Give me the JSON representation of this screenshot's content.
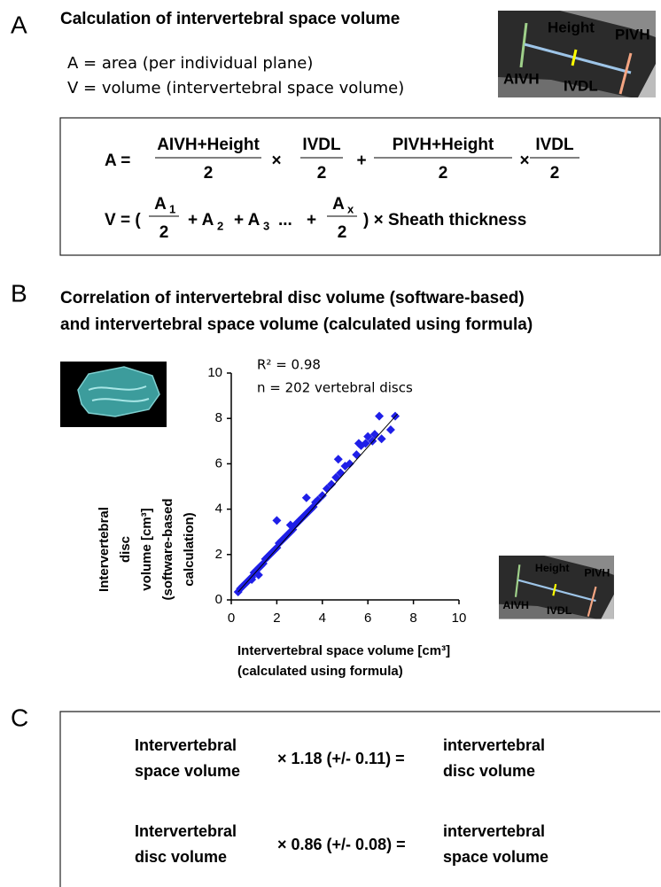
{
  "panel_a": {
    "letter": "A",
    "title": "Calculation of intervertebral space volume",
    "definitions": [
      "A = area (per individual plane)",
      "V = volume (intervertebral space volume)"
    ],
    "image_labels": {
      "height": "Height",
      "pivh": "PIVH",
      "aivh": "AIVH",
      "ivdl": "IVDL"
    },
    "formula_a": {
      "lhs": "A =",
      "fractions": [
        {
          "num": "AIVH+Height",
          "den": "2"
        },
        {
          "num": "IVDL",
          "den": "2"
        },
        {
          "num": "PIVH+Height",
          "den": "2"
        },
        {
          "num": "IVDL",
          "den": "2"
        }
      ],
      "operators": [
        "×",
        "+",
        "×"
      ]
    },
    "formula_v": {
      "lhs": "V = (",
      "fractions": [
        {
          "num": "A",
          "sub": "1",
          "den": "2"
        },
        {
          "num": "A",
          "sub": "x",
          "den": "2"
        }
      ],
      "terms": [
        {
          "text": "+ A",
          "sub": "2"
        },
        {
          "text": "+ A",
          "sub": "3"
        }
      ],
      "ellipsis": "...",
      "plus": "+",
      "tail": ") × Sheath thickness"
    }
  },
  "panel_b": {
    "letter": "B",
    "title": [
      "Correlation of intervertebral disc volume (software-based)",
      "and intervertebral space volume (calculated using formula)"
    ],
    "image_labels": {
      "height": "Height",
      "pivh": "PIVH",
      "aivh": "AIVH",
      "ivdl": "IVDL"
    }
  },
  "chart_data": {
    "type": "scatter",
    "annotations": [
      "R² = 0.98",
      "n = 202 vertebral discs"
    ],
    "x_label": [
      "Intervertebral space volume [cm³]",
      "(calculated using formula)"
    ],
    "y_label": [
      "Intervertebral",
      "disc",
      "volume [cm³]",
      "(software-based",
      "calculation)"
    ],
    "xlim": [
      0,
      10
    ],
    "ylim": [
      0,
      10
    ],
    "xticks": [
      0,
      2,
      4,
      6,
      8,
      10
    ],
    "yticks": [
      0,
      2,
      4,
      6,
      8,
      10
    ],
    "color": "#1f1fe8",
    "x": [
      0.3,
      0.4,
      0.5,
      0.6,
      0.7,
      0.8,
      0.9,
      1.0,
      1.1,
      1.2,
      1.3,
      1.4,
      1.5,
      1.6,
      1.7,
      1.8,
      1.9,
      2.0,
      2.1,
      2.2,
      2.3,
      2.4,
      2.5,
      2.6,
      2.7,
      2.8,
      2.9,
      3.0,
      3.1,
      3.2,
      3.3,
      3.4,
      3.5,
      3.6,
      3.7,
      3.8,
      4.0,
      4.2,
      4.4,
      4.6,
      4.8,
      5.0,
      5.2,
      5.5,
      5.7,
      5.9,
      6.0,
      6.3,
      6.5,
      6.6,
      7.0,
      7.2,
      2.0,
      2.6,
      4.7,
      3.3,
      1.2,
      0.9,
      5.6,
      6.2
    ],
    "values": [
      0.35,
      0.5,
      0.6,
      0.7,
      0.8,
      0.9,
      1.0,
      1.2,
      1.3,
      1.4,
      1.5,
      1.6,
      1.8,
      1.9,
      2.0,
      2.1,
      2.2,
      2.3,
      2.5,
      2.6,
      2.7,
      2.8,
      2.9,
      3.0,
      3.1,
      3.3,
      3.4,
      3.5,
      3.6,
      3.7,
      3.8,
      3.9,
      4.0,
      4.1,
      4.3,
      4.4,
      4.6,
      4.9,
      5.1,
      5.4,
      5.6,
      5.9,
      6.0,
      6.4,
      6.8,
      6.9,
      7.2,
      7.3,
      8.1,
      7.1,
      7.5,
      8.1,
      3.5,
      3.3,
      6.2,
      4.5,
      1.1,
      0.9,
      6.9,
      7.0
    ],
    "fit_line": {
      "x": [
        0.3,
        7.3
      ],
      "values": [
        0.35,
        8.2
      ]
    }
  },
  "panel_c": {
    "letter": "C",
    "rows": [
      {
        "left": [
          "Intervertebral",
          "space volume"
        ],
        "factor": "× 1.18 (+/- 0.11) =",
        "right": [
          "intervertebral",
          "disc volume"
        ]
      },
      {
        "left": [
          "Intervertebral",
          "disc volume"
        ],
        "factor": "× 0.86 (+/- 0.08) =",
        "right": [
          "intervertebral",
          "space volume"
        ]
      }
    ]
  }
}
